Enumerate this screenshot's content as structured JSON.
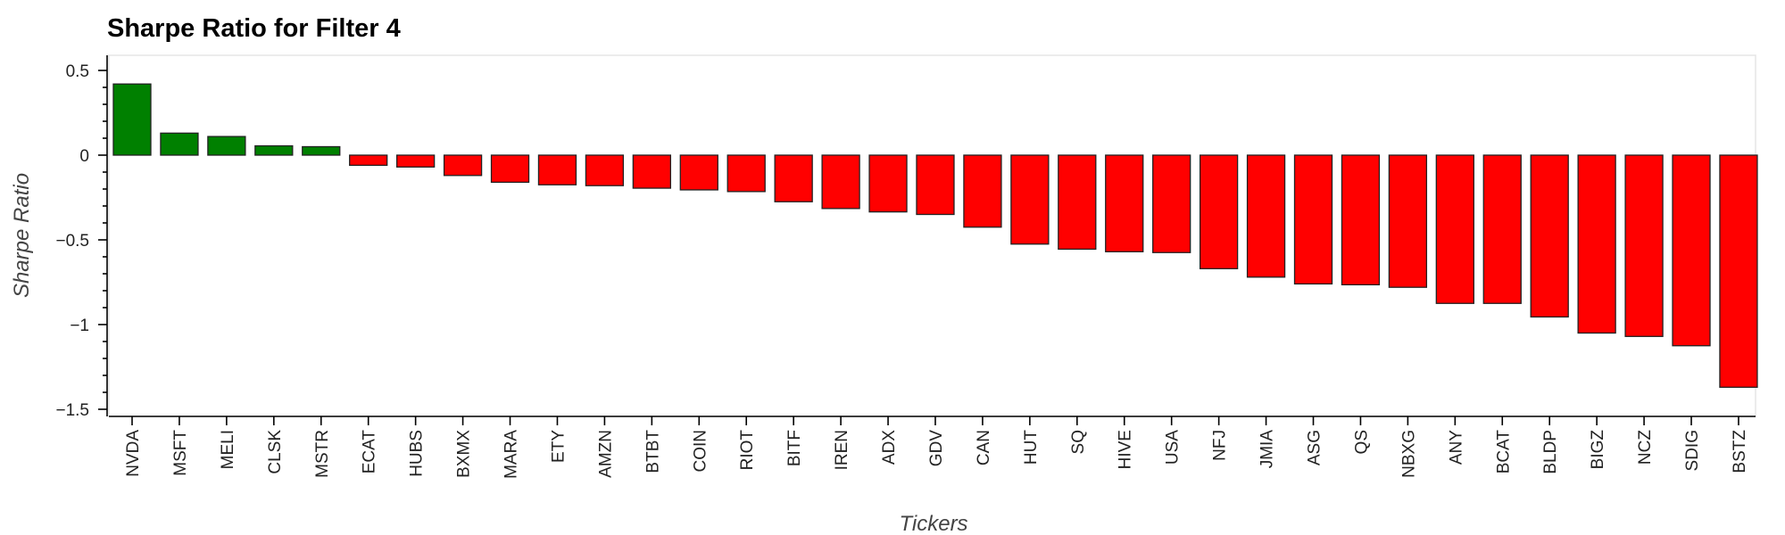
{
  "chart_data": {
    "type": "bar",
    "title": "Sharpe Ratio for Filter 4",
    "xlabel": "Tickers",
    "ylabel": "Sharpe Ratio",
    "ylim": [
      -1.55,
      0.5
    ],
    "yticks": [
      {
        "value": 0.5,
        "label": "0.5"
      },
      {
        "value": 0,
        "label": "0"
      },
      {
        "value": -0.5,
        "label": "−0.5"
      },
      {
        "value": -1,
        "label": "−1"
      },
      {
        "value": -1.5,
        "label": "−1.5"
      }
    ],
    "categories": [
      "NVDA",
      "MSFT",
      "MELI",
      "CLSK",
      "MSTR",
      "ECAT",
      "HUBS",
      "BXMX",
      "MARA",
      "ETY",
      "AMZN",
      "BTBT",
      "COIN",
      "RIOT",
      "BITF",
      "IREN",
      "ADX",
      "GDV",
      "CAN",
      "HUT",
      "SQ",
      "HIVE",
      "USA",
      "NFJ",
      "JMIA",
      "ASG",
      "QS",
      "NBXG",
      "ANY",
      "BCAT",
      "BLDP",
      "BIGZ",
      "NCZ",
      "SDIG",
      "BSTZ"
    ],
    "values": [
      0.42,
      0.13,
      0.11,
      0.055,
      0.05,
      -0.06,
      -0.07,
      -0.12,
      -0.16,
      -0.175,
      -0.18,
      -0.195,
      -0.205,
      -0.215,
      -0.275,
      -0.315,
      -0.335,
      -0.35,
      -0.425,
      -0.525,
      -0.555,
      -0.57,
      -0.575,
      -0.67,
      -0.72,
      -0.76,
      -0.765,
      -0.78,
      -0.875,
      -0.875,
      -0.955,
      -1.05,
      -1.07,
      -1.125,
      -1.37
    ],
    "colors": {
      "positive": "#008000",
      "negative": "#ff0000",
      "frame": "#e5e5e5"
    },
    "grid": false,
    "legend": "none"
  }
}
